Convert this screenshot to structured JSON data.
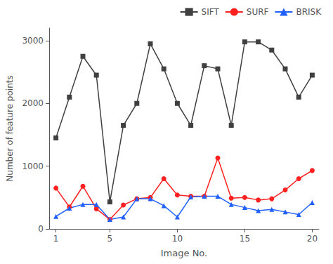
{
  "chart_data": {
    "type": "line",
    "xlabel": "Image No.",
    "ylabel": "Number of feature points",
    "x": [
      1,
      2,
      3,
      4,
      5,
      6,
      7,
      8,
      9,
      10,
      11,
      12,
      13,
      14,
      15,
      16,
      17,
      18,
      19,
      20
    ],
    "series": [
      {
        "name": "SIFT",
        "color": "#404040",
        "marker": "square",
        "values": [
          1450,
          2100,
          2750,
          2450,
          430,
          1650,
          2000,
          2950,
          2550,
          2000,
          1650,
          2600,
          2550,
          1650,
          2980,
          2980,
          2850,
          2550,
          2100,
          2450
        ]
      },
      {
        "name": "SURF",
        "color": "#ff2020",
        "marker": "circle",
        "values": [
          650,
          350,
          680,
          320,
          150,
          380,
          480,
          500,
          800,
          540,
          520,
          520,
          1130,
          490,
          500,
          460,
          480,
          620,
          800,
          930
        ]
      },
      {
        "name": "BRISK",
        "color": "#2060ff",
        "marker": "triangle",
        "values": [
          200,
          330,
          390,
          390,
          150,
          190,
          480,
          480,
          370,
          190,
          510,
          520,
          520,
          390,
          340,
          290,
          310,
          270,
          230,
          420
        ]
      }
    ],
    "xlim": [
      0.5,
      20.5
    ],
    "xticks": [
      1,
      5,
      10,
      15,
      20
    ],
    "ylim": [
      0,
      3200
    ],
    "yticks": [
      0,
      1000,
      2000,
      3000
    ],
    "grid": false,
    "legend": "upper right"
  }
}
